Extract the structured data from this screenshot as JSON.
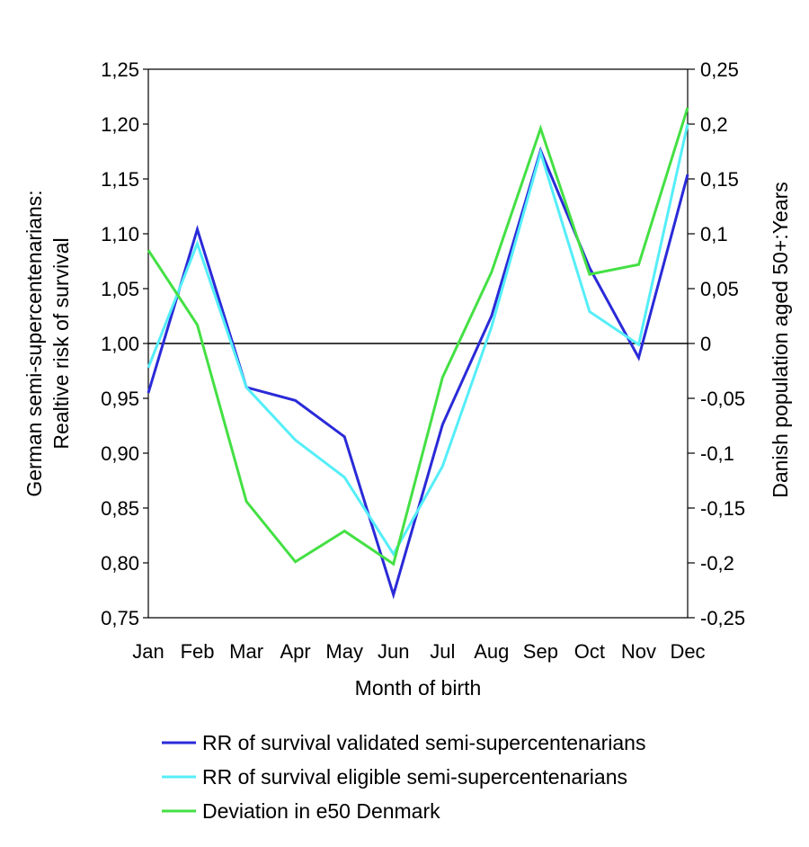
{
  "chart_data": {
    "type": "line",
    "title": "",
    "xlabel": "Month of birth",
    "ylabel_left_line1": "German semi-supercentenarians:",
    "ylabel_left_line2": "Realtive risk of survival",
    "ylabel_right": "Danish population aged 50+:Years",
    "categories": [
      "Jan",
      "Feb",
      "Mar",
      "Apr",
      "May",
      "Jun",
      "Jul",
      "Aug",
      "Sep",
      "Oct",
      "Nov",
      "Dec"
    ],
    "ylim_left": [
      0.75,
      1.25
    ],
    "ylim_right": [
      -0.25,
      0.25
    ],
    "yticks_left": [
      "1,25",
      "1,20",
      "1,15",
      "1,10",
      "1,05",
      "1,00",
      "0,95",
      "0,90",
      "0,85",
      "0,80",
      "0,75"
    ],
    "yticks_right": [
      "0,25",
      "0,2",
      "0,15",
      "0,1",
      "0,05",
      "0",
      "-0,05",
      "-0,1",
      "-0,15",
      "-0,2",
      "-0,25"
    ],
    "reference_line": 1.0,
    "legend_position": "bottom",
    "series": [
      {
        "name": "RR of survival validated semi-supercentenarians",
        "axis": "left",
        "color": "#2a2ad8",
        "values": [
          0.955,
          1.104,
          0.96,
          0.948,
          0.915,
          0.771,
          0.926,
          1.025,
          1.176,
          1.069,
          0.987,
          1.154
        ]
      },
      {
        "name": "RR of survival eligible semi-supercentenarians",
        "axis": "left",
        "color": "#55eef8",
        "values": [
          0.978,
          1.091,
          0.96,
          0.912,
          0.878,
          0.808,
          0.888,
          1.015,
          1.174,
          1.029,
          0.999,
          1.2
        ]
      },
      {
        "name": "Deviation in e50 Denmark",
        "axis": "right",
        "color": "#44e044",
        "values": [
          0.085,
          0.017,
          -0.144,
          -0.199,
          -0.171,
          -0.201,
          -0.031,
          0.065,
          0.196,
          0.063,
          0.072,
          0.215
        ]
      }
    ]
  }
}
